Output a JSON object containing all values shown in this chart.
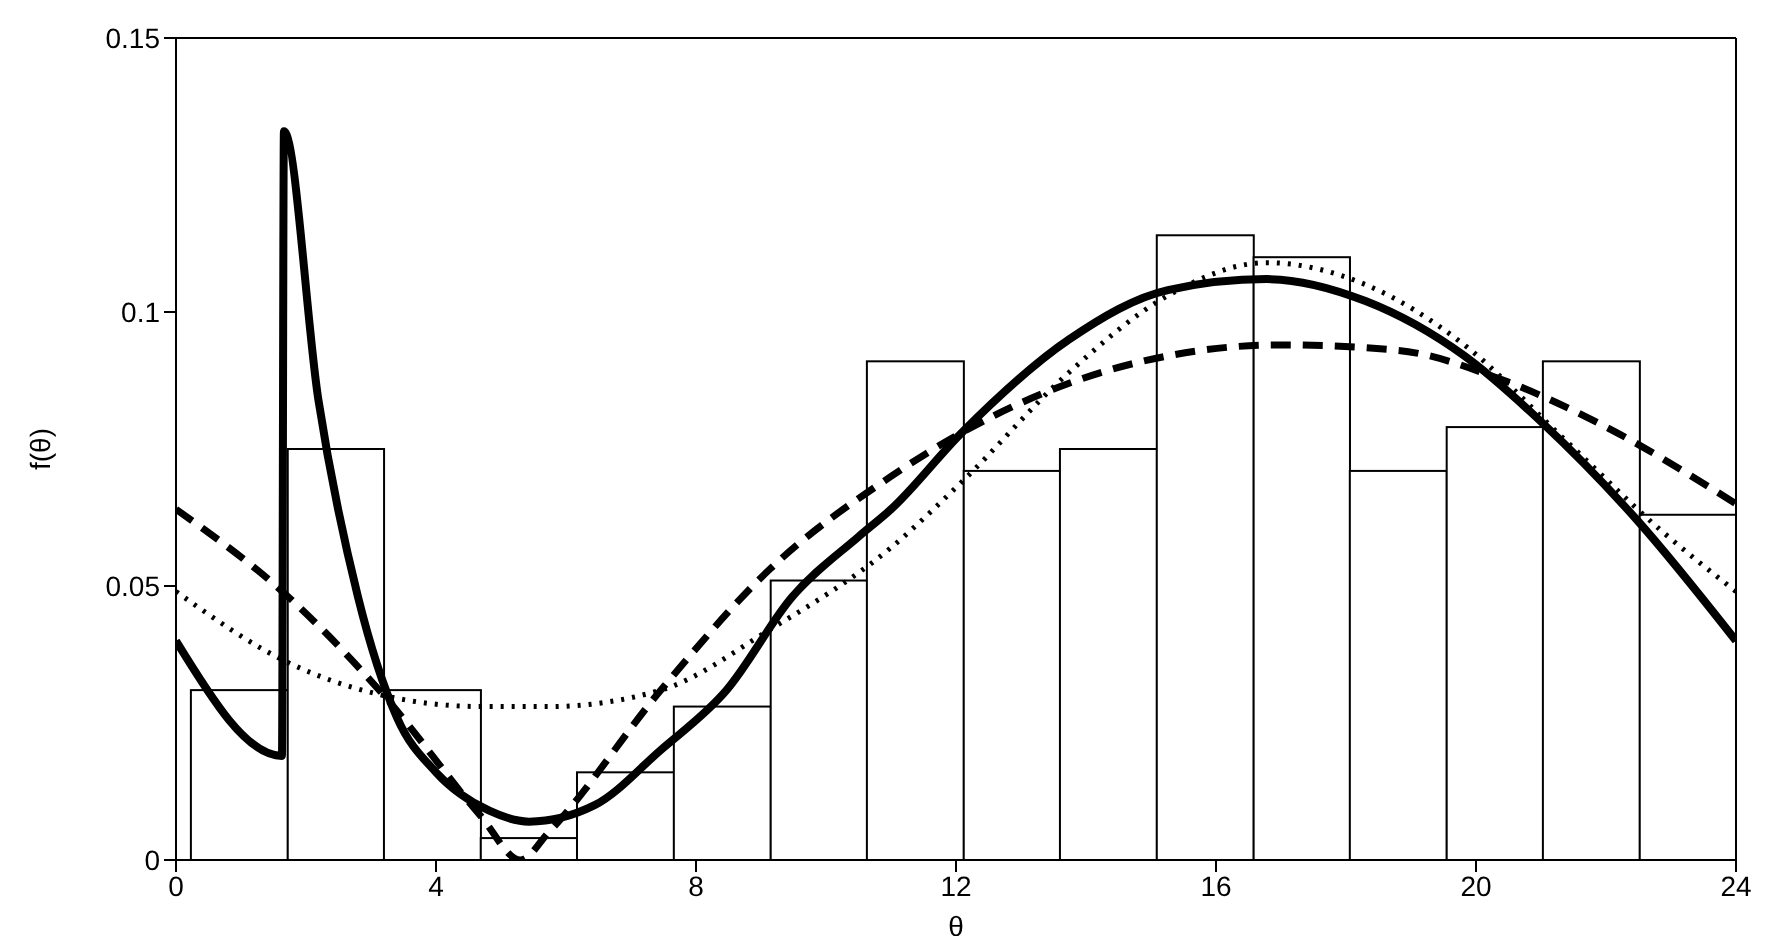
{
  "chart_data": {
    "type": "histogram",
    "xlabel": "θ",
    "ylabel": "f(θ)",
    "bins": [
      0.23,
      1.72,
      3.2,
      4.69,
      6.17,
      7.66,
      9.15,
      10.63,
      12.12,
      13.6,
      15.09,
      16.58,
      18.06,
      19.55,
      21.03,
      22.52,
      24.0
    ],
    "values": [
      0.031,
      0.075,
      0.031,
      0.004,
      0.016,
      0.028,
      0.051,
      0.091,
      0.071,
      0.075,
      0.114,
      0.11,
      0.071,
      0.079,
      0.091,
      0.063
    ],
    "color": "#ffffff",
    "series": [
      {
        "type": "line",
        "color": "#000000",
        "line_style": "solid",
        "x": [
          0,
          1.63,
          1.66,
          2.19,
          2.8,
          3.4,
          4.0,
          4.82,
          5.43,
          6.44,
          7.45,
          8.47,
          9.48,
          10.5,
          11.0,
          12.09,
          13.74,
          15.26,
          16.78,
          18.3,
          19.82,
          21.0,
          22.48,
          24
        ],
        "values": [
          0.04,
          0.019,
          0.133,
          0.084,
          0.048,
          0.026,
          0.016,
          0.009,
          0.007,
          0.01,
          0.02,
          0.031,
          0.048,
          0.059,
          0.064,
          0.078,
          0.095,
          0.104,
          0.106,
          0.102,
          0.092,
          0.08,
          0.062,
          0.04
        ]
      },
      {
        "type": "line",
        "color": "#000000",
        "line_style": "dashed",
        "x": [
          0,
          1.73,
          3.2,
          4.69,
          5.3,
          5.73,
          7.46,
          9.13,
          11.0,
          12.09,
          13.74,
          15.26,
          16.98,
          18.8,
          20.32,
          21.84,
          24
        ],
        "values": [
          0.064,
          0.048,
          0.03,
          0.008,
          0,
          0.005,
          0.031,
          0.053,
          0.07,
          0.078,
          0.087,
          0.092,
          0.094,
          0.093,
          0.088,
          0.08,
          0.065
        ]
      },
      {
        "type": "line",
        "color": "#000000",
        "line_style": "dotted",
        "x": [
          0,
          1.73,
          3.2,
          4.69,
          5.73,
          7.46,
          9.13,
          11.0,
          12.09,
          13.74,
          15.26,
          16.78,
          18.3,
          19.82,
          21.34,
          22.86,
          24
        ],
        "values": [
          0.049,
          0.036,
          0.03,
          0.028,
          0.028,
          0.031,
          0.042,
          0.057,
          0.069,
          0.089,
          0.103,
          0.109,
          0.105,
          0.094,
          0.077,
          0.06,
          0.049
        ]
      }
    ],
    "xlim": [
      0,
      24
    ],
    "xticks": [
      0,
      4,
      8,
      12,
      16,
      20,
      24
    ],
    "ylim": [
      0,
      0.15
    ],
    "yticks": [
      0,
      0.05,
      0.1,
      0.15
    ],
    "grid": false,
    "legend": false
  }
}
